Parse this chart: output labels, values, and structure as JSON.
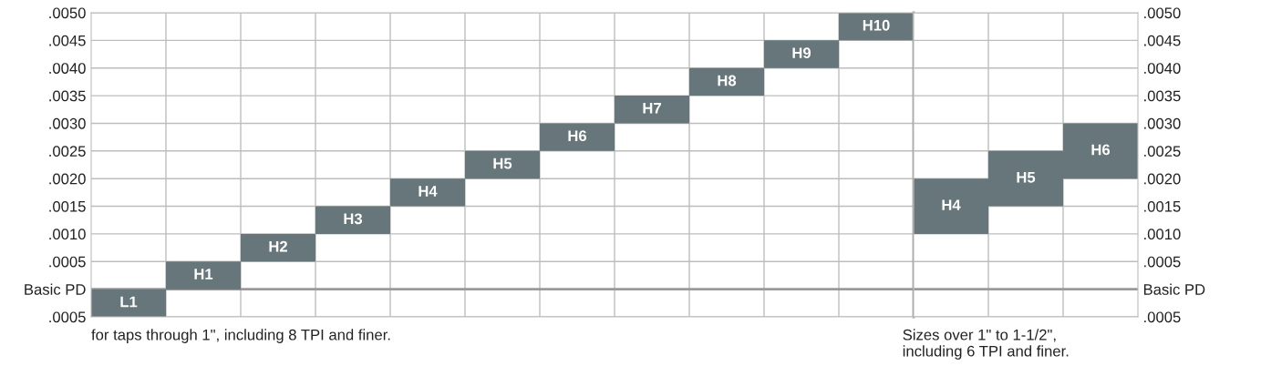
{
  "chart_data": [
    {
      "type": "bar",
      "categories": [
        "L1",
        "H1",
        "H2",
        "H3",
        "H4",
        "H5",
        "H6",
        "H7",
        "H8",
        "H9",
        "H10"
      ],
      "series": [
        {
          "color": "#67767a",
          "values": [
            0.0005,
            0.0005,
            0.0005,
            0.0005,
            0.0005,
            0.0005,
            0.0005,
            0.0005,
            0.0005,
            0.0005,
            0.0005
          ],
          "base": [
            -0.0005,
            0,
            0.0005,
            0.001,
            0.0015,
            0.002,
            0.0025,
            0.003,
            0.0035,
            0.004,
            0.0045
          ]
        }
      ],
      "ylim": [
        -0.0005,
        0.005
      ],
      "yticks": [
        {
          "value": -0.0005,
          "label": ".0005"
        },
        {
          "value": 0,
          "label": "Basic PD"
        },
        {
          "value": 0.0005,
          "label": ".0005"
        },
        {
          "value": 0.001,
          "label": ".0010"
        },
        {
          "value": 0.0015,
          "label": ".0015"
        },
        {
          "value": 0.002,
          "label": ".0020"
        },
        {
          "value": 0.0025,
          "label": ".0025"
        },
        {
          "value": 0.003,
          "label": ".0030"
        },
        {
          "value": 0.0035,
          "label": ".0035"
        },
        {
          "value": 0.004,
          "label": ".0040"
        },
        {
          "value": 0.0045,
          "label": ".0045"
        },
        {
          "value": 0.005,
          "label": ".0050"
        }
      ],
      "ref_lines": [
        {
          "axis": "y",
          "value": 0,
          "color": "#9a9a9a"
        }
      ],
      "grid": true,
      "tick_labels": "y",
      "annotations": [
        "for taps through 1\", including 8 TPI and finer."
      ]
    },
    {
      "type": "bar",
      "categories": [
        "H4",
        "H5",
        "H6"
      ],
      "series": [
        {
          "color": "#67767a",
          "values": [
            0.001,
            0.001,
            0.001
          ],
          "base": [
            0.001,
            0.0015,
            0.002
          ]
        }
      ],
      "ylim": [
        -0.0005,
        0.005
      ],
      "yticks": [
        {
          "value": -0.0005,
          "label": ".0005"
        },
        {
          "value": 0,
          "label": "Basic PD"
        },
        {
          "value": 0.0005,
          "label": ".0005"
        },
        {
          "value": 0.001,
          "label": ".0010"
        },
        {
          "value": 0.0015,
          "label": ".0015"
        },
        {
          "value": 0.002,
          "label": ".0020"
        },
        {
          "value": 0.0025,
          "label": ".0025"
        },
        {
          "value": 0.003,
          "label": ".0030"
        },
        {
          "value": 0.0035,
          "label": ".0035"
        },
        {
          "value": 0.004,
          "label": ".0040"
        },
        {
          "value": 0.0045,
          "label": ".0045"
        },
        {
          "value": 0.005,
          "label": ".0050"
        }
      ],
      "ref_lines": [
        {
          "axis": "y",
          "value": 0,
          "color": "#9a9a9a"
        }
      ],
      "grid": true,
      "tick_labels": "y",
      "annotations": [
        "Sizes over 1\" to 1-1/2\",\nincluding 6 TPI and finer."
      ]
    }
  ]
}
